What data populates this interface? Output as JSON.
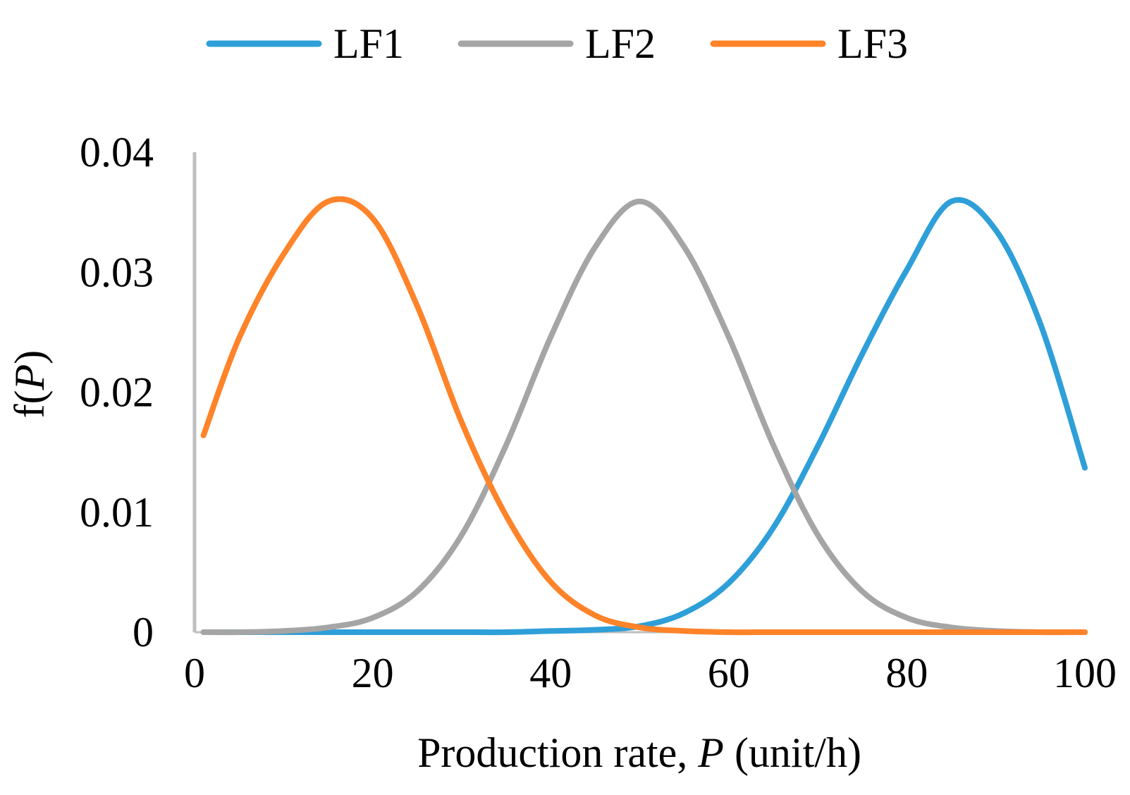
{
  "chart_data": {
    "type": "line",
    "title": "",
    "xlabel": {
      "prefix": "Production rate, ",
      "variable": "P",
      "suffix": " (unit/h)"
    },
    "ylabel": {
      "prefix": "f(",
      "variable": "P",
      "suffix": ")"
    },
    "xlim": [
      0,
      100
    ],
    "ylim": [
      0,
      0.04
    ],
    "x_ticks": [
      0,
      20,
      40,
      60,
      80,
      100
    ],
    "x_tick_labels": [
      "0",
      "20",
      "40",
      "60",
      "80",
      "100"
    ],
    "y_ticks": [
      0,
      0.01,
      0.02,
      0.03,
      0.04
    ],
    "y_tick_labels": [
      "0",
      "0.01",
      "0.02",
      "0.03",
      "0.04"
    ],
    "grid": false,
    "legend_position": "top",
    "x": [
      1,
      5,
      10,
      15,
      20,
      25,
      30,
      35,
      40,
      45,
      50,
      55,
      60,
      65,
      70,
      75,
      80,
      85,
      90,
      95,
      100
    ],
    "series": [
      {
        "name": "LF1",
        "color": "#2E9FD8",
        "values": [
          0.0,
          0.0,
          0.0,
          0.0,
          0.0,
          0.0,
          0.0,
          0.0,
          0.0001,
          0.0002,
          0.0005,
          0.0016,
          0.0041,
          0.0087,
          0.0155,
          0.0232,
          0.0302,
          0.0359,
          0.0335,
          0.0257,
          0.0137
        ]
      },
      {
        "name": "LF2",
        "color": "#A5A5A5",
        "values": [
          0.0,
          0.0,
          0.0001,
          0.0004,
          0.0012,
          0.0034,
          0.0081,
          0.0156,
          0.0246,
          0.0321,
          0.0359,
          0.0321,
          0.0246,
          0.0156,
          0.0081,
          0.0034,
          0.0012,
          0.0004,
          0.0001,
          0.0,
          0.0
        ]
      },
      {
        "name": "LF3",
        "color": "#FF8329",
        "values": [
          0.0164,
          0.0245,
          0.0315,
          0.0359,
          0.0345,
          0.0272,
          0.0175,
          0.0097,
          0.0042,
          0.0014,
          0.0004,
          0.0001,
          0.0,
          0.0,
          0.0,
          0.0,
          0.0,
          0.0,
          0.0,
          0.0,
          0.0
        ]
      }
    ]
  }
}
